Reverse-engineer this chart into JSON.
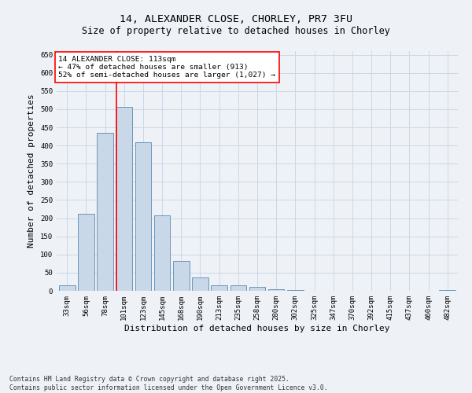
{
  "title_line1": "14, ALEXANDER CLOSE, CHORLEY, PR7 3FU",
  "title_line2": "Size of property relative to detached houses in Chorley",
  "xlabel": "Distribution of detached houses by size in Chorley",
  "ylabel": "Number of detached properties",
  "footer": "Contains HM Land Registry data © Crown copyright and database right 2025.\nContains public sector information licensed under the Open Government Licence v3.0.",
  "bin_labels": [
    "33sqm",
    "56sqm",
    "78sqm",
    "101sqm",
    "123sqm",
    "145sqm",
    "168sqm",
    "190sqm",
    "213sqm",
    "235sqm",
    "258sqm",
    "280sqm",
    "302sqm",
    "325sqm",
    "347sqm",
    "370sqm",
    "392sqm",
    "415sqm",
    "437sqm",
    "460sqm",
    "482sqm"
  ],
  "bar_values": [
    15,
    213,
    435,
    507,
    410,
    207,
    83,
    37,
    15,
    15,
    10,
    5,
    3,
    1,
    1,
    1,
    1,
    0,
    0,
    0,
    3
  ],
  "bar_color": "#c8d8e8",
  "bar_edge_color": "#5a8ab0",
  "vline_x": 3,
  "vline_color": "red",
  "annotation_text": "14 ALEXANDER CLOSE: 113sqm\n← 47% of detached houses are smaller (913)\n52% of semi-detached houses are larger (1,027) →",
  "annotation_box_color": "white",
  "annotation_box_edge": "red",
  "ylim": [
    0,
    660
  ],
  "yticks": [
    0,
    50,
    100,
    150,
    200,
    250,
    300,
    350,
    400,
    450,
    500,
    550,
    600,
    650
  ],
  "grid_color": "#c8d8e8",
  "background_color": "#eef2f7",
  "title_fontsize": 9.5,
  "subtitle_fontsize": 8.5,
  "tick_fontsize": 6.5,
  "ylabel_fontsize": 8,
  "xlabel_fontsize": 8,
  "annotation_fontsize": 6.8,
  "footer_fontsize": 5.8
}
